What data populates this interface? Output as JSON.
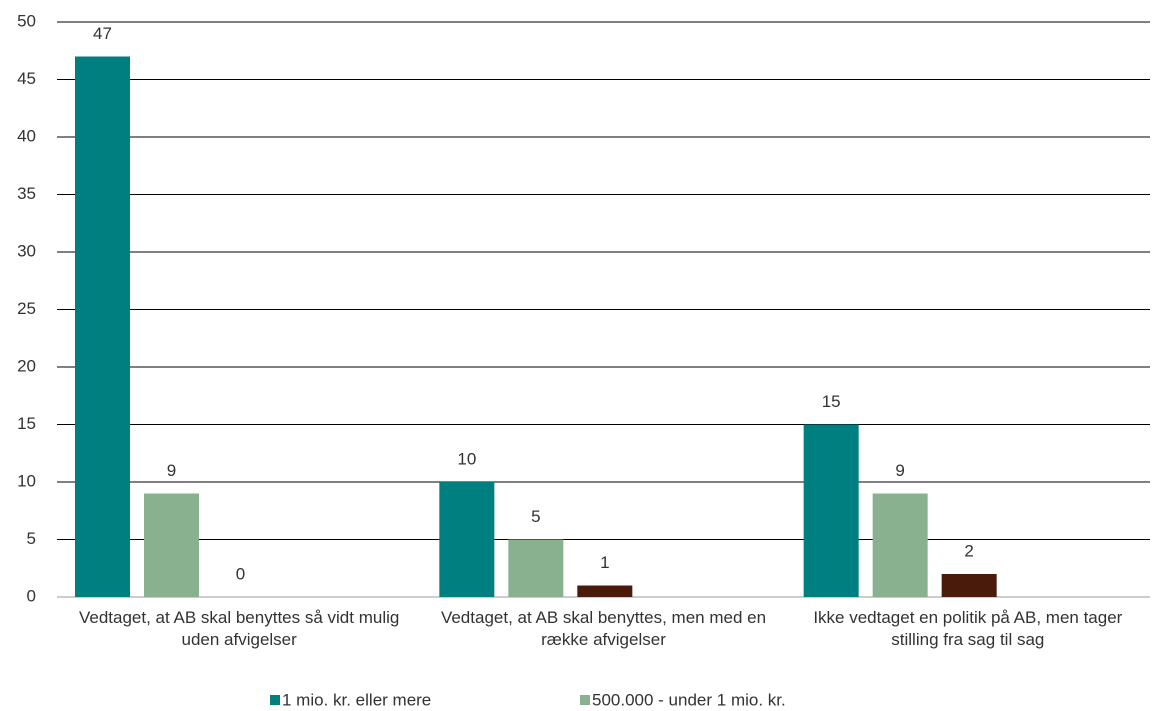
{
  "chart_data": {
    "type": "bar",
    "categories": [
      "Vedtaget, at AB skal benyttes så vidt mulig uden afvigelser",
      "Vedtaget, at AB skal benyttes, men med en række afvigelser",
      "Ikke vedtaget en politik på AB, men tager stilling fra sag til sag"
    ],
    "series": [
      {
        "name": "1 mio. kr. eller mere",
        "color": "#007f80",
        "values": [
          47,
          10,
          15
        ]
      },
      {
        "name": "500.000 - under 1 mio. kr.",
        "color": "#8ab18f",
        "values": [
          9,
          5,
          9
        ]
      },
      {
        "color": "#4a1a0a",
        "values": [
          0,
          1,
          2
        ]
      }
    ],
    "ylim": [
      0,
      50
    ],
    "yticks": [
      0,
      5,
      10,
      15,
      20,
      25,
      30,
      35,
      40,
      45,
      50
    ],
    "grid": true
  }
}
